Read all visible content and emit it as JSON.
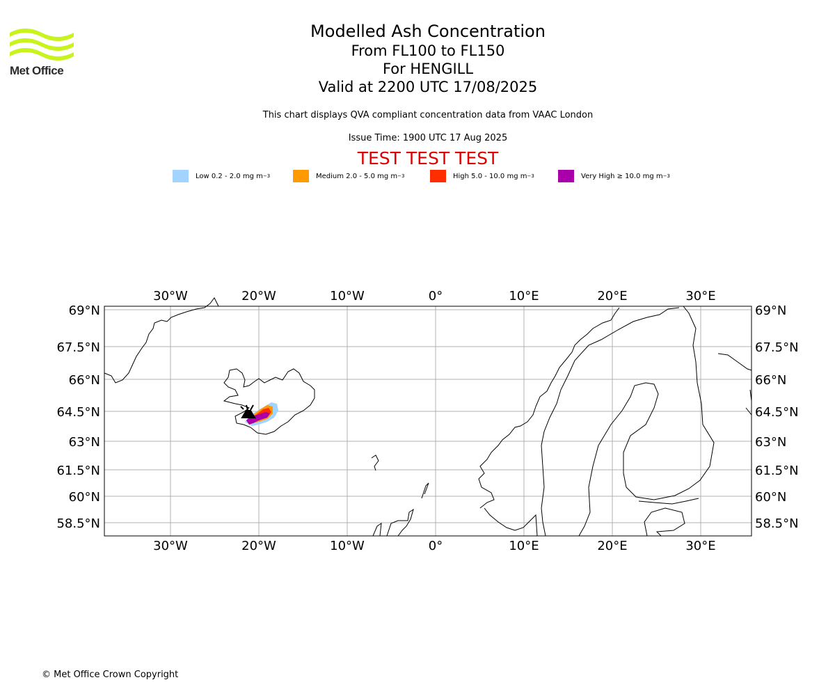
{
  "logo": {
    "name": "Met Office"
  },
  "title": {
    "line1": "Modelled Ash Concentration",
    "line2": "From FL100 to FL150",
    "line3": "For HENGILL",
    "line4": "Valid at 2200 UTC 17/08/2025"
  },
  "subtitle": "This chart displays QVA compliant concentration data from VAAC London",
  "issue_time": "Issue Time: 1900 UTC 17 Aug 2025",
  "test_banner": "TEST TEST TEST",
  "legend": [
    {
      "label_prefix": "Low 0.2 - 2.0 mg m",
      "exp": "−3",
      "color": "#a3d3ff"
    },
    {
      "label_prefix": "Medium 2.0 - 5.0 mg m",
      "exp": "−3",
      "color": "#ff9a00"
    },
    {
      "label_prefix": "High 5.0 - 10.0 mg m",
      "exp": "−3",
      "color": "#ff2d00"
    },
    {
      "label_prefix": "Very High ≥ 10.0 mg m",
      "exp": "−3",
      "color": "#aa00aa"
    }
  ],
  "map": {
    "lon_ticks": [
      "30°W",
      "20°W",
      "10°W",
      "0°",
      "10°E",
      "20°E",
      "30°E"
    ],
    "lat_ticks": [
      "69°N",
      "67.5°N",
      "66°N",
      "64.5°N",
      "63°N",
      "61.5°N",
      "60°N",
      "58.5°N"
    ],
    "source": {
      "lon": -21.3,
      "lat": 64.05,
      "symbol": "volcano"
    }
  },
  "copyright": "© Met Office Crown Copyright"
}
